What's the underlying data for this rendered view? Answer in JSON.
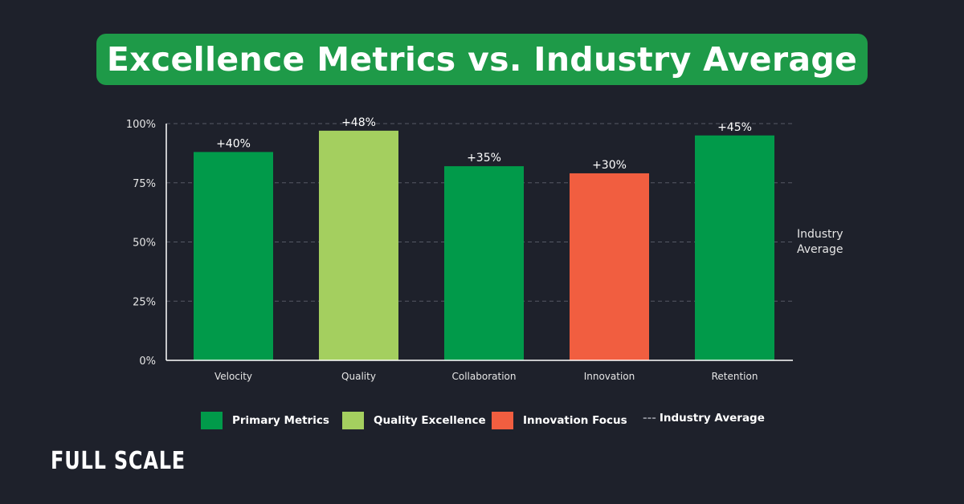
{
  "header": {
    "title": "Excellence Metrics vs. Industry Average"
  },
  "chart_data": {
    "type": "bar",
    "title": "Excellence Metrics vs. Industry Average",
    "categories": [
      "Velocity",
      "Quality",
      "Collaboration",
      "Innovation",
      "Retention"
    ],
    "values": [
      88,
      97,
      82,
      79,
      95
    ],
    "data_labels": [
      "+40%",
      "+48%",
      "+35%",
      "+30%",
      "+45%"
    ],
    "bar_groups": [
      "Primary Metrics",
      "Quality Excellence",
      "Primary Metrics",
      "Innovation Focus",
      "Primary Metrics"
    ],
    "ylim": [
      0,
      100
    ],
    "yticks": [
      0,
      25,
      50,
      75,
      100
    ],
    "ytick_labels": [
      "0%",
      "25%",
      "50%",
      "75%",
      "100%"
    ],
    "grid": "dashed horizontal",
    "reference_label": "Industry Average",
    "legend": [
      {
        "label": "Primary Metrics",
        "color": "#019a4a"
      },
      {
        "label": "Quality Excellence",
        "color": "#a4cf5f"
      },
      {
        "label": "Innovation Focus",
        "color": "#f15e40"
      },
      {
        "label": "Industry Average",
        "style": "dashed",
        "marker": "---"
      }
    ],
    "legend_position": "bottom",
    "xlabel": "",
    "ylabel": ""
  },
  "footer": {
    "logo": "FULL SCALE"
  }
}
